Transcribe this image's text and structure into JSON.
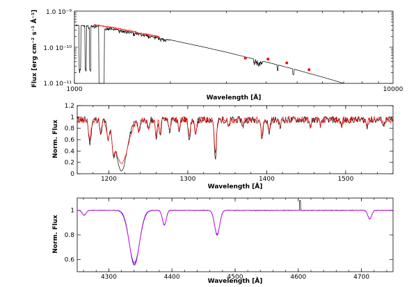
{
  "chart_data": [
    {
      "type": "line",
      "panel": "sed",
      "xlabel": "Wavelength [Å]",
      "ylabel": "Flux [erg cm⁻² s⁻¹ Å⁻¹]",
      "xscale": "log",
      "yscale": "log",
      "xlim": [
        1000,
        10000
      ],
      "ylim": [
        1e-11,
        1e-09
      ],
      "x_tick_labels": [
        "1000",
        "10000"
      ],
      "y_tick_labels": [
        "1.0 10⁻⁹",
        "1.0 10⁻¹⁰",
        "1.0 10⁻¹¹"
      ],
      "series": [
        {
          "color": "#000000",
          "x": [
            1000,
            1100,
            1200,
            1300,
            1500,
            1700,
            2000,
            2500,
            3000,
            3500,
            4000,
            4500,
            5000,
            5500,
            6000,
            6500,
            7000
          ],
          "y": [
            4.2e-10,
            4.1e-10,
            3.8e-10,
            3.4e-10,
            2.7e-10,
            2.15e-10,
            1.6e-10,
            1.05e-10,
            7.3e-11,
            5.2e-11,
            3.9e-11,
            3e-11,
            2.35e-11,
            1.85e-11,
            1.5e-11,
            1.22e-11,
            1e-11
          ]
        },
        {
          "color": "#ff0000",
          "x": [
            1150,
            1250,
            1350,
            1450,
            1550,
            1650,
            1750,
            1850
          ],
          "y": [
            4.1e-10,
            3.6e-10,
            3.15e-10,
            2.75e-10,
            2.4e-10,
            2.15e-10,
            1.95e-10,
            1.75e-10
          ]
        },
        {
          "color": "#ff0000",
          "markers": true,
          "x": [
            3440,
            4050,
            4640,
            5450
          ],
          "y": [
            5e-11,
            4.7e-11,
            3.7e-11,
            2.4e-11
          ]
        }
      ]
    },
    {
      "type": "line",
      "panel": "uv",
      "xlabel": "Wavelength [Å]",
      "ylabel": "Norm. Flux",
      "xlim": [
        1160,
        1560
      ],
      "ylim": [
        0,
        1.2
      ],
      "x_ticks": [
        1200,
        1300,
        1400,
        1500
      ],
      "y_ticks": [
        0,
        0.2,
        0.4,
        0.6,
        0.8,
        1,
        1.2
      ],
      "lines": [
        {
          "center": 1176,
          "depth": 0.45,
          "width": 1.5
        },
        {
          "center": 1190,
          "depth": 0.3,
          "width": 1.2
        },
        {
          "center": 1199,
          "depth": 0.35,
          "width": 1.5
        },
        {
          "center": 1206,
          "depth": 0.55,
          "width": 1.5
        },
        {
          "center": 1216,
          "depth": 0.95,
          "width": 7
        },
        {
          "center": 1238,
          "depth": 0.25,
          "width": 1.2
        },
        {
          "center": 1250,
          "depth": 0.2,
          "width": 1.2
        },
        {
          "center": 1260,
          "depth": 0.35,
          "width": 1.2
        },
        {
          "center": 1265,
          "depth": 0.3,
          "width": 1.0
        },
        {
          "center": 1277,
          "depth": 0.25,
          "width": 1.0
        },
        {
          "center": 1289,
          "depth": 0.2,
          "width": 1.0
        },
        {
          "center": 1302,
          "depth": 0.35,
          "width": 1.3
        },
        {
          "center": 1310,
          "depth": 0.3,
          "width": 1.2
        },
        {
          "center": 1335,
          "depth": 0.75,
          "width": 1.3
        },
        {
          "center": 1352,
          "depth": 0.15,
          "width": 1.0
        },
        {
          "center": 1370,
          "depth": 0.15,
          "width": 1.0
        },
        {
          "center": 1394,
          "depth": 0.35,
          "width": 1.2
        },
        {
          "center": 1403,
          "depth": 0.25,
          "width": 1.2
        },
        {
          "center": 1417,
          "depth": 0.15,
          "width": 1.0
        },
        {
          "center": 1455,
          "depth": 0.15,
          "width": 1.0
        },
        {
          "center": 1468,
          "depth": 0.12,
          "width": 1.0
        },
        {
          "center": 1495,
          "depth": 0.12,
          "width": 1.0
        },
        {
          "center": 1527,
          "depth": 0.15,
          "width": 1.0
        },
        {
          "center": 1548,
          "depth": 0.12,
          "width": 1.0
        }
      ],
      "series": [
        {
          "color": "#000000"
        },
        {
          "color": "#ff0000"
        }
      ]
    },
    {
      "type": "line",
      "panel": "optical",
      "xlabel": "Wavelength [Å]",
      "ylabel": "Norm. Flux",
      "xlim": [
        4250,
        4750
      ],
      "ylim": [
        0.5,
        1.1
      ],
      "x_ticks": [
        4300,
        4400,
        4500,
        4600,
        4700
      ],
      "y_ticks": [
        0.6,
        0.8,
        1
      ],
      "lines": [
        {
          "center": 4261,
          "depth": 0.04,
          "width": 3
        },
        {
          "center": 4340.5,
          "depth": 0.44,
          "width": 8
        },
        {
          "center": 4387.9,
          "depth": 0.12,
          "width": 3
        },
        {
          "center": 4471.5,
          "depth": 0.2,
          "width": 4
        },
        {
          "center": 4713.1,
          "depth": 0.07,
          "width": 3
        }
      ],
      "series": [
        {
          "color": "#000000"
        },
        {
          "color": "#0000ff"
        },
        {
          "color": "#ff00ff"
        }
      ]
    }
  ]
}
